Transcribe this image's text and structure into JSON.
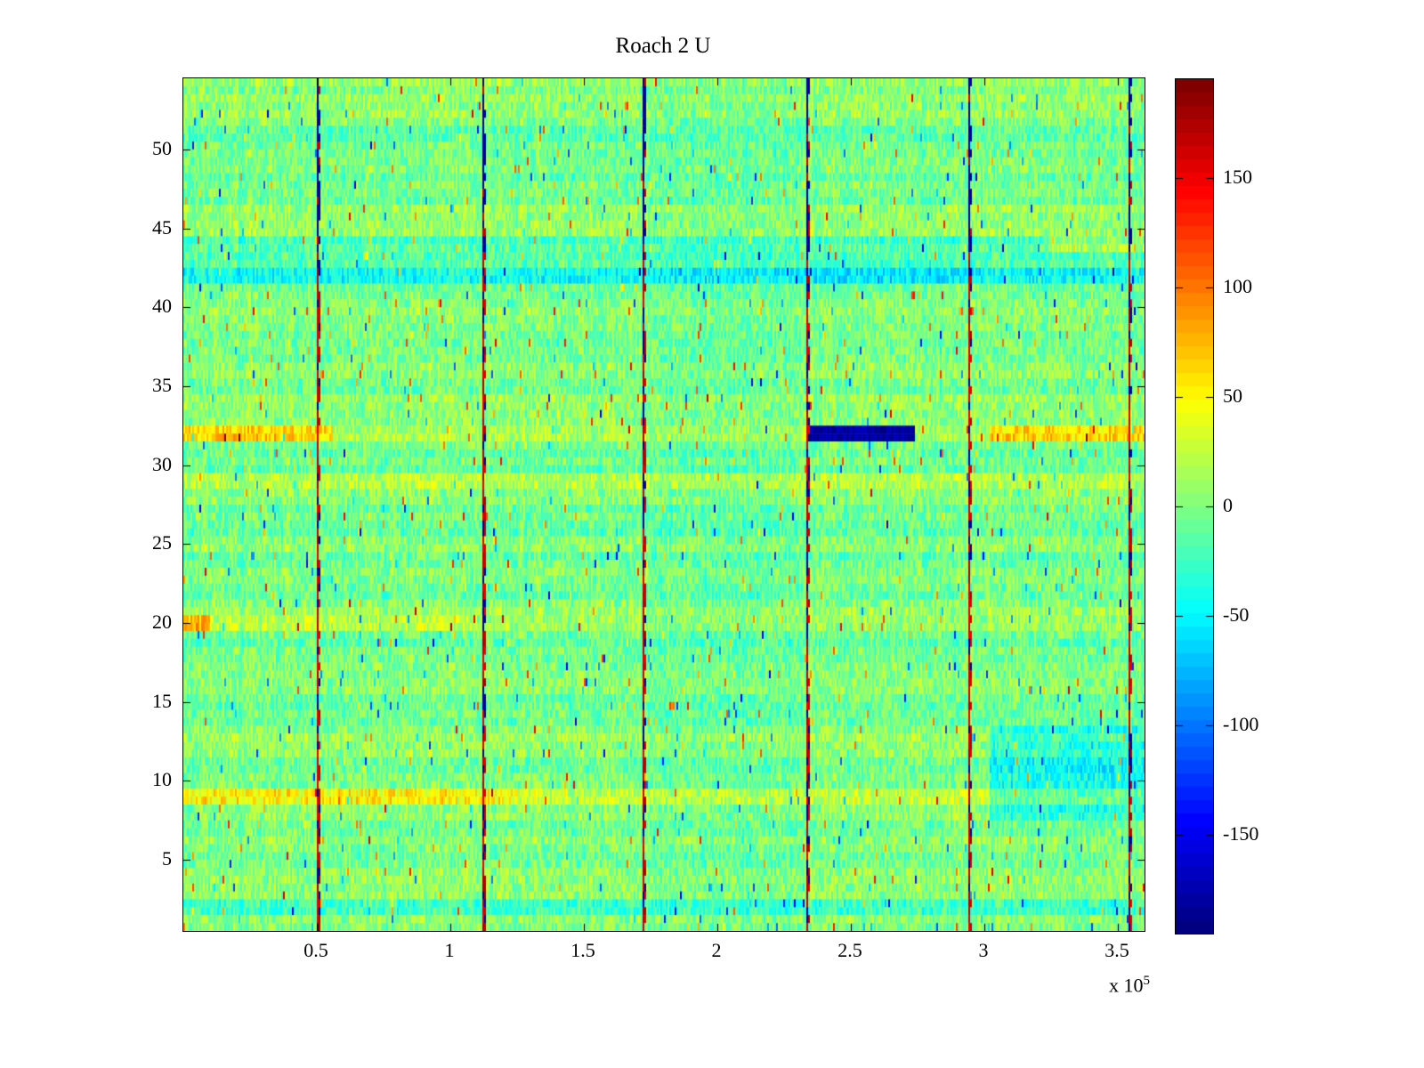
{
  "chart_data": {
    "type": "heatmap",
    "title": "Roach 2 U",
    "xlabel": "",
    "ylabel": "",
    "colormap": "jet",
    "clim": [
      -195,
      195
    ],
    "x_range_1e5": [
      0,
      3.6
    ],
    "x_ticks_1e5": [
      0.5,
      1,
      1.5,
      2,
      2.5,
      3,
      3.5
    ],
    "x_tick_labels": [
      "0.5",
      "1",
      "1.5",
      "2",
      "2.5",
      "3",
      "3.5"
    ],
    "x_exponent": {
      "prefix": "x 10",
      "exp": "5"
    },
    "y_range": [
      0.5,
      54.5
    ],
    "y_ticks": [
      5,
      10,
      15,
      20,
      25,
      30,
      35,
      40,
      45,
      50
    ],
    "y_tick_labels": [
      "5",
      "10",
      "15",
      "20",
      "25",
      "30",
      "35",
      "40",
      "45",
      "50"
    ],
    "colorbar_ticks": [
      150,
      100,
      50,
      0,
      -50,
      -100,
      -150
    ],
    "colorbar_tick_labels": [
      "150",
      "100",
      "50",
      "0",
      "-50",
      "-100",
      "-150"
    ],
    "grid_cols": 540,
    "grid_rows": 108,
    "noise_seed": 42,
    "background_noise_range": [
      -26,
      30
    ],
    "vertical_stripes_x_1e5": [
      0.5,
      1.12,
      1.72,
      2.33,
      2.94,
      3.54
    ],
    "stripe_values": {
      "red": 165,
      "blue": -185
    },
    "stripe_top_blue_above_row": 44,
    "row_offsets": {
      "2": -22,
      "9": 18,
      "12": -6,
      "18": -8,
      "20": 6,
      "25": 6,
      "29": 16,
      "32": 10,
      "36": 6,
      "42": -48,
      "43": -14,
      "44": -16,
      "47": -8
    },
    "patches": [
      {
        "x0": 0.0,
        "x1": 0.56,
        "row0": 31.5,
        "row1": 32.6,
        "offset": 48
      },
      {
        "x0": 3.02,
        "x1": 3.6,
        "row0": 31.5,
        "row1": 32.6,
        "offset": 48
      },
      {
        "x0": 2.34,
        "x1": 2.74,
        "row0": 31.55,
        "row1": 32.5,
        "value": -182
      },
      {
        "x0": 0.0,
        "x1": 1.25,
        "row0": 8.45,
        "row1": 9.55,
        "offset": 26
      },
      {
        "x0": 3.02,
        "x1": 3.6,
        "row0": 7.5,
        "row1": 13.6,
        "offset": -38
      },
      {
        "x0": 1.75,
        "x1": 2.33,
        "row0": 0,
        "row1": 55,
        "offset": -6
      },
      {
        "x0": 2.3,
        "x1": 3.0,
        "row0": 41.4,
        "row1": 43.0,
        "offset": -12
      },
      {
        "x0": 0.0,
        "x1": 1.1,
        "row0": 19.4,
        "row1": 20.6,
        "offset": 14
      },
      {
        "x0": 0.0,
        "x1": 0.1,
        "row0": 19.5,
        "row1": 20.5,
        "offset": 60
      },
      {
        "x0": 3.25,
        "x1": 3.6,
        "row0": 43.5,
        "row1": 44.6,
        "offset": 30
      }
    ],
    "speckle_probability": 0.022,
    "speckle_amplitude": [
      50,
      135
    ]
  },
  "layout_colors": {
    "axis": "#000000",
    "background": "#ffffff"
  }
}
